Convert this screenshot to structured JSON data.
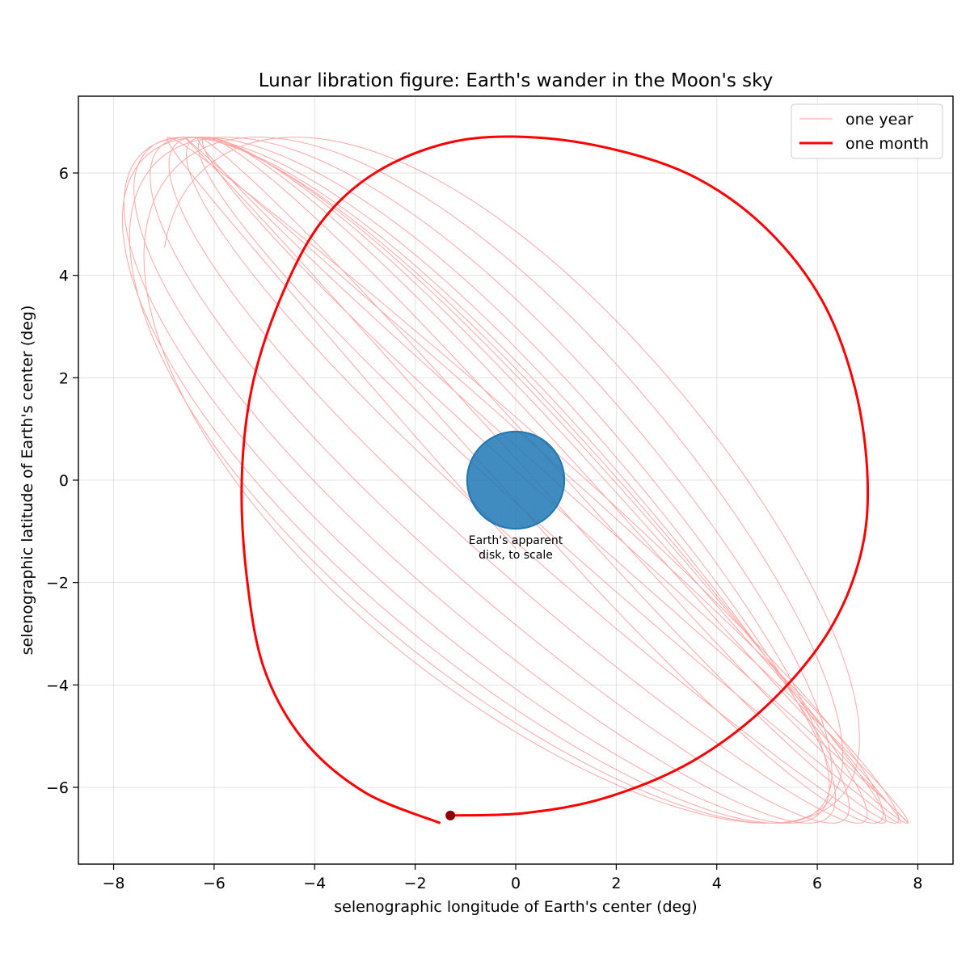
{
  "chart_data": {
    "type": "line",
    "title": "Lunar libration figure: Earth's wander in the Moon's sky",
    "xlabel": "selenographic longitude of Earth's center (deg)",
    "ylabel": "selenographic latitude of Earth's center (deg)",
    "xlim": [
      -8.7,
      8.7
    ],
    "ylim": [
      -7.5,
      7.5
    ],
    "xticks": [
      -8,
      -6,
      -4,
      -2,
      0,
      2,
      4,
      6,
      8
    ],
    "yticks": [
      -6,
      -4,
      -2,
      0,
      2,
      4,
      6
    ],
    "grid": true,
    "legend_position": "top-right",
    "colors": {
      "year": "#ff0000",
      "month": "#ff0000",
      "earth": "#1f77b4",
      "start_marker": "#8b0000"
    },
    "series": [
      {
        "name": "one year",
        "style": "thin-translucent",
        "model": {
          "type": "libration",
          "days": 365,
          "x_amp": 7.0,
          "x_amp2": 0.35,
          "x_amp3": 0.8,
          "x_period": 27.5546,
          "y_amp": 6.7,
          "y_period": 27.2122,
          "start_offset_days": 0
        }
      },
      {
        "name": "one month",
        "style": "thick",
        "points": [
          [
            -1.3,
            -6.55
          ],
          [
            0.2,
            -6.5
          ],
          [
            1.8,
            -6.2
          ],
          [
            3.5,
            -5.5
          ],
          [
            5.0,
            -4.4
          ],
          [
            6.2,
            -3.0
          ],
          [
            6.85,
            -1.5
          ],
          [
            7.0,
            0.0
          ],
          [
            6.75,
            1.8
          ],
          [
            6.1,
            3.5
          ],
          [
            5.0,
            4.9
          ],
          [
            3.6,
            5.9
          ],
          [
            2.0,
            6.45
          ],
          [
            0.3,
            6.7
          ],
          [
            -1.3,
            6.6
          ],
          [
            -2.8,
            6.0
          ],
          [
            -3.9,
            5.0
          ],
          [
            -4.7,
            3.5
          ],
          [
            -5.25,
            1.8
          ],
          [
            -5.45,
            0.0
          ],
          [
            -5.35,
            -1.9
          ],
          [
            -5.0,
            -3.7
          ],
          [
            -4.2,
            -5.1
          ],
          [
            -3.0,
            -6.1
          ],
          [
            -1.5,
            -6.7
          ]
        ],
        "start_point": [
          -1.3,
          -6.55
        ]
      }
    ],
    "annotations": [
      {
        "label": "earth-disk",
        "center": [
          0,
          0
        ],
        "radius_deg": 0.95,
        "text_lines": [
          "Earth's apparent",
          "disk, to scale"
        ]
      }
    ]
  }
}
